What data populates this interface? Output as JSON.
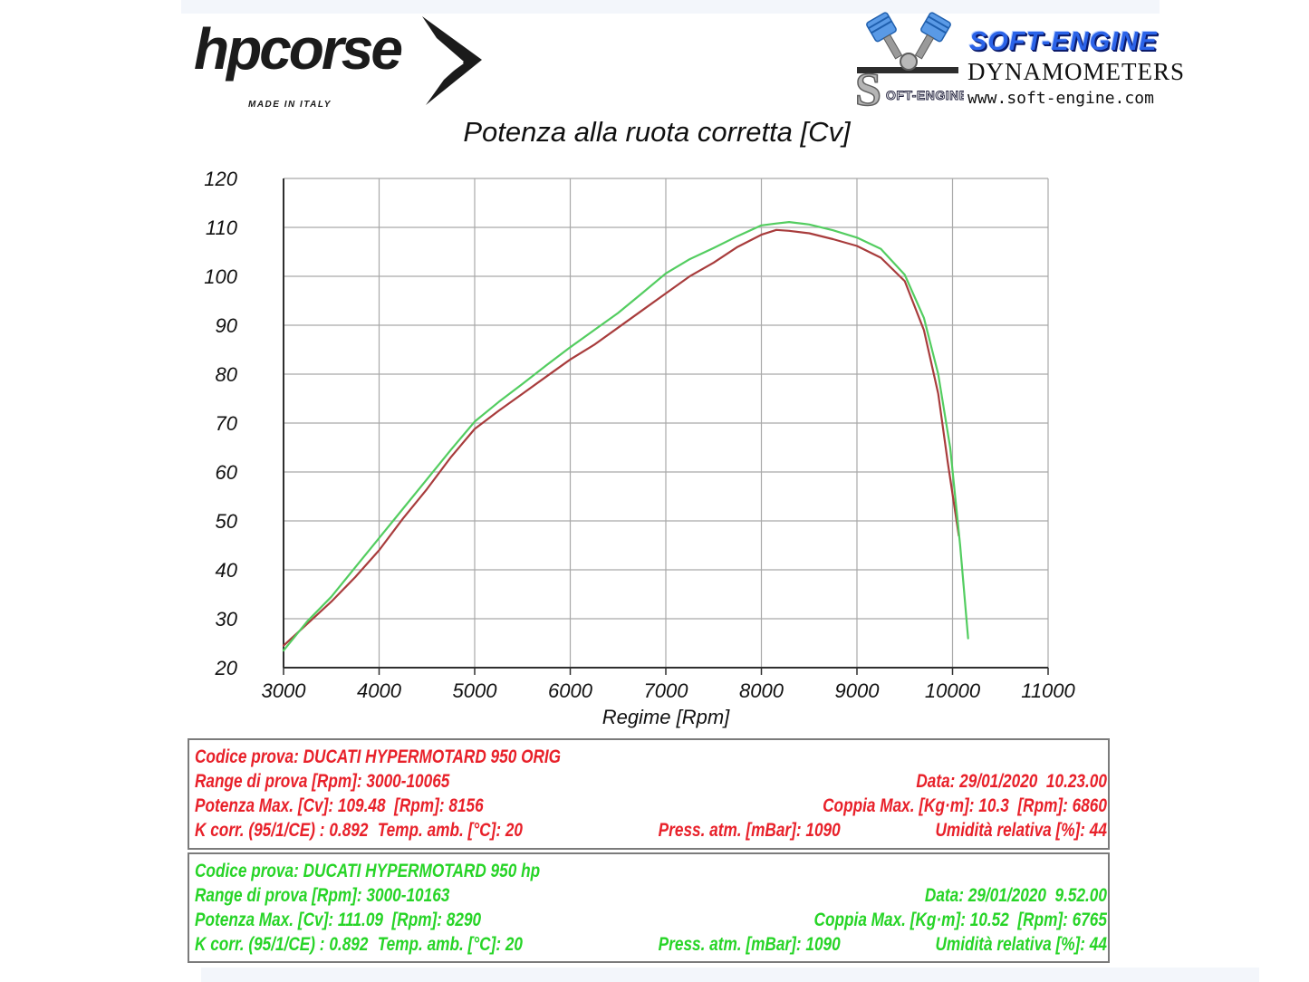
{
  "header": {
    "hpcorse": {
      "name": "hpcorse",
      "tagline": "MADE IN ITALY"
    },
    "softengine": {
      "brand": "SOFT-ENGINE",
      "subtitle": "DYNAMOMETERS",
      "url": "www.soft-engine.com",
      "mark_label": "OFT-ENGINE"
    }
  },
  "chart_data": {
    "type": "line",
    "title": "Potenza alla ruota corretta [Cv]",
    "xlabel": "Regime [Rpm]",
    "ylabel": "",
    "xlim": [
      3000,
      11000
    ],
    "ylim": [
      20,
      120
    ],
    "xticks": [
      3000,
      4000,
      5000,
      6000,
      7000,
      8000,
      9000,
      10000,
      11000
    ],
    "yticks": [
      20,
      30,
      40,
      50,
      60,
      70,
      80,
      90,
      100,
      110,
      120
    ],
    "grid": true,
    "legend": "none",
    "grid_color": "#a9a9a9",
    "axis_color": "#2f2f2f",
    "series": [
      {
        "name": "ORIG",
        "color": "#a83c3c",
        "x": [
          3000,
          3250,
          3500,
          3750,
          4000,
          4250,
          4500,
          4750,
          5000,
          5250,
          5500,
          5750,
          6000,
          6250,
          6500,
          6750,
          7000,
          7250,
          7500,
          7750,
          8000,
          8156,
          8290,
          8500,
          8750,
          9000,
          9250,
          9500,
          9700,
          9850,
          9950,
          10065
        ],
        "y": [
          24.5,
          29.0,
          33.5,
          38.5,
          44.0,
          50.5,
          56.5,
          63.0,
          68.8,
          72.5,
          76.0,
          79.5,
          83.0,
          86.0,
          89.5,
          93.0,
          96.5,
          100.0,
          102.8,
          106.0,
          108.5,
          109.48,
          109.3,
          108.8,
          107.6,
          106.2,
          103.8,
          99.0,
          89.0,
          76.0,
          62.0,
          47.0
        ]
      },
      {
        "name": "hp",
        "color": "#53cd60",
        "x": [
          3000,
          3250,
          3500,
          3750,
          4000,
          4250,
          4500,
          4750,
          5000,
          5250,
          5500,
          5750,
          6000,
          6250,
          6500,
          6750,
          7000,
          7250,
          7500,
          7750,
          8000,
          8156,
          8290,
          8500,
          8750,
          9000,
          9250,
          9500,
          9700,
          9850,
          9975,
          10080,
          10163
        ],
        "y": [
          23.5,
          29.5,
          34.5,
          40.5,
          46.5,
          52.5,
          58.5,
          64.5,
          70.3,
          74.3,
          78.0,
          81.8,
          85.5,
          89.0,
          92.5,
          96.5,
          100.6,
          103.5,
          105.8,
          108.2,
          110.4,
          110.8,
          111.09,
          110.6,
          109.4,
          107.9,
          105.6,
          100.3,
          91.5,
          80.0,
          65.0,
          45.0,
          26.0
        ]
      }
    ]
  },
  "tests": [
    {
      "color": "#e8212a",
      "lines": {
        "codice": "Codice prova: DUCATI HYPERMOTARD 950 ORIG",
        "range": "Range di prova [Rpm]: 3000-10065",
        "data": "Data: 29/01/2020  10.23.00",
        "potenza": "Potenza Max. [Cv]: 109.48  [Rpm]: 8156",
        "coppia": "Coppia Max. [Kg·m]: 10.3  [Rpm]: 6860",
        "kcorr": "K corr. (95/1/CE) : 0.892",
        "temp": "Temp. amb. [°C]: 20",
        "press": "Press. atm. [mBar]: 1090",
        "umidita": "Umidità relativa [%]: 44"
      }
    },
    {
      "color": "#27d427",
      "lines": {
        "codice": "Codice prova: DUCATI HYPERMOTARD 950 hp",
        "range": "Range di prova [Rpm]: 3000-10163",
        "data": "Data: 29/01/2020  9.52.00",
        "potenza": "Potenza Max. [Cv]: 111.09  [Rpm]: 8290",
        "coppia": "Coppia Max. [Kg·m]: 10.52  [Rpm]: 6765",
        "kcorr": "K corr. (95/1/CE) : 0.892",
        "temp": "Temp. amb. [°C]: 20",
        "press": "Press. atm. [mBar]: 1090",
        "umidita": "Umidità relativa [%]: 44"
      }
    }
  ]
}
